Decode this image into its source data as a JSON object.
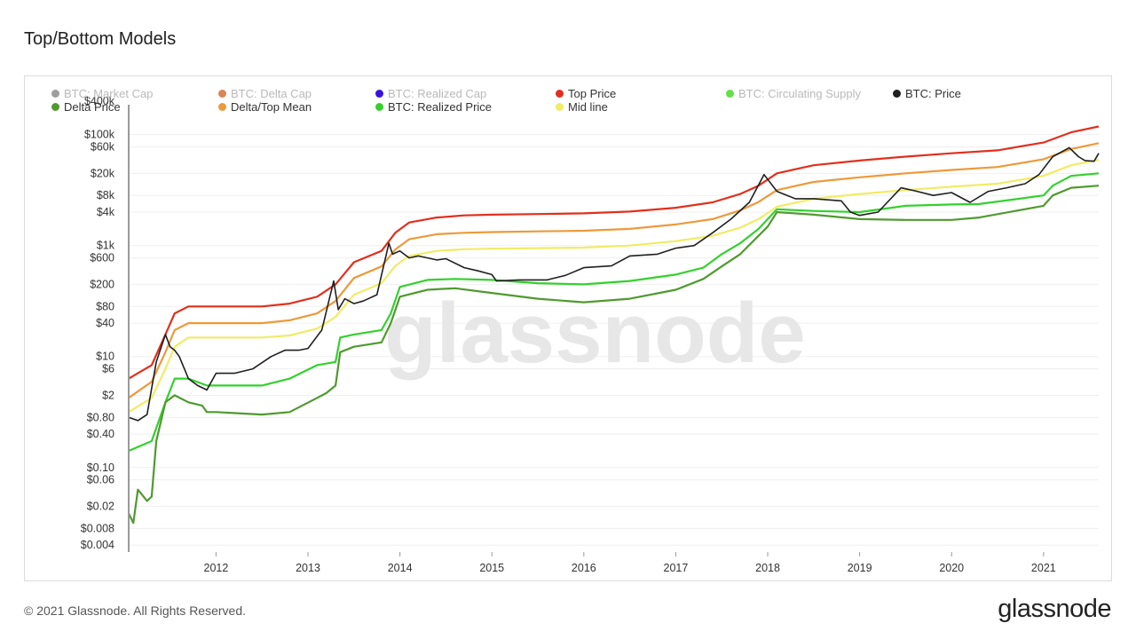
{
  "page": {
    "title": "Top/Bottom Models",
    "footer": "© 2021 Glassnode. All Rights Reserved.",
    "brand": "glassnode",
    "watermark": "glassnode"
  },
  "legend": [
    {
      "label": "BTC: Market Cap",
      "color": "#9e9e9e",
      "active": false
    },
    {
      "label": "BTC: Delta Cap",
      "color": "#d9845a",
      "active": false
    },
    {
      "label": "BTC: Realized Cap",
      "color": "#3a12e0",
      "active": false
    },
    {
      "label": "Top Price",
      "color": "#e0301e",
      "active": true
    },
    {
      "label": "BTC: Circulating Supply",
      "color": "#62e04a",
      "active": false
    },
    {
      "label": "BTC: Price",
      "color": "#1f1f1f",
      "active": true
    },
    {
      "label": "Delta Price",
      "color": "#4f9a2f",
      "active": true
    },
    {
      "label": "Delta/Top Mean",
      "color": "#ec9a3a",
      "active": true
    },
    {
      "label": "BTC: Realized Price",
      "color": "#33d12d",
      "active": true
    },
    {
      "label": "Mid line",
      "color": "#f0ec66",
      "active": true
    }
  ],
  "chart_data": {
    "type": "line",
    "title": "Top/Bottom Models",
    "y_scale": "log",
    "x_ticks": [
      "2012",
      "2013",
      "2014",
      "2015",
      "2016",
      "2017",
      "2018",
      "2019",
      "2020",
      "2021"
    ],
    "y_ticks": [
      {
        "v": 100000,
        "label": "$100k"
      },
      {
        "v": 60000,
        "label": "$60k"
      },
      {
        "v": 20000,
        "label": "$20k"
      },
      {
        "v": 8000,
        "label": "$8k"
      },
      {
        "v": 4000,
        "label": "$4k"
      },
      {
        "v": 1000,
        "label": "$1k"
      },
      {
        "v": 600,
        "label": "$600"
      },
      {
        "v": 200,
        "label": "$200"
      },
      {
        "v": 80,
        "label": "$80"
      },
      {
        "v": 40,
        "label": "$40"
      },
      {
        "v": 10,
        "label": "$10"
      },
      {
        "v": 6,
        "label": "$6"
      },
      {
        "v": 2,
        "label": "$2"
      },
      {
        "v": 0.8,
        "label": "$0.80"
      },
      {
        "v": 0.4,
        "label": "$0.40"
      },
      {
        "v": 0.1,
        "label": "$0.10"
      },
      {
        "v": 0.06,
        "label": "$0.06"
      },
      {
        "v": 0.02,
        "label": "$0.02"
      },
      {
        "v": 0.008,
        "label": "$0.008"
      },
      {
        "v": 0.004,
        "label": "$0.004"
      }
    ],
    "y_top_label": "$400k",
    "x_range": [
      2011.05,
      2021.6
    ],
    "series": [
      {
        "name": "Top Price",
        "color": "#e0301e",
        "x": [
          2011.05,
          2011.3,
          2011.45,
          2011.55,
          2011.7,
          2012.0,
          2012.5,
          2012.8,
          2013.1,
          2013.3,
          2013.5,
          2013.8,
          2013.95,
          2014.1,
          2014.4,
          2014.7,
          2015.0,
          2015.5,
          2016.0,
          2016.5,
          2017.0,
          2017.4,
          2017.7,
          2017.9,
          2018.1,
          2018.5,
          2019.0,
          2019.5,
          2020.0,
          2020.5,
          2021.0,
          2021.3,
          2021.6
        ],
        "y": [
          4,
          7,
          25,
          60,
          80,
          80,
          80,
          90,
          120,
          200,
          500,
          800,
          1700,
          2600,
          3200,
          3500,
          3600,
          3700,
          3800,
          4100,
          4800,
          6000,
          8500,
          12000,
          20000,
          28000,
          34000,
          40000,
          46000,
          52000,
          72000,
          110000,
          140000
        ]
      },
      {
        "name": "Delta/Top Mean",
        "color": "#ec9a3a",
        "x": [
          2011.05,
          2011.3,
          2011.45,
          2011.55,
          2011.7,
          2012.0,
          2012.5,
          2012.8,
          2013.1,
          2013.3,
          2013.5,
          2013.8,
          2013.95,
          2014.1,
          2014.4,
          2014.7,
          2015.0,
          2015.5,
          2016.0,
          2016.5,
          2017.0,
          2017.4,
          2017.7,
          2017.9,
          2018.1,
          2018.5,
          2019.0,
          2019.5,
          2020.0,
          2020.5,
          2021.0,
          2021.3,
          2021.6
        ],
        "y": [
          1.8,
          3.5,
          12,
          30,
          40,
          40,
          40,
          45,
          60,
          100,
          260,
          420,
          850,
          1300,
          1600,
          1700,
          1750,
          1800,
          1850,
          2000,
          2400,
          3000,
          4300,
          6100,
          10000,
          14000,
          17000,
          20000,
          23000,
          26000,
          36000,
          55000,
          70000
        ]
      },
      {
        "name": "Mid line",
        "color": "#f0ec66",
        "x": [
          2011.05,
          2011.3,
          2011.45,
          2011.55,
          2011.7,
          2012.0,
          2012.5,
          2012.8,
          2013.1,
          2013.3,
          2013.5,
          2013.8,
          2013.95,
          2014.1,
          2014.4,
          2014.7,
          2015.0,
          2015.5,
          2016.0,
          2016.5,
          2017.0,
          2017.4,
          2017.7,
          2017.9,
          2018.1,
          2018.5,
          2019.0,
          2019.5,
          2020.0,
          2020.5,
          2021.0,
          2021.3,
          2021.6
        ],
        "y": [
          1,
          1.8,
          6,
          15,
          22,
          22,
          22,
          24,
          32,
          52,
          130,
          210,
          430,
          650,
          800,
          860,
          880,
          900,
          920,
          1000,
          1200,
          1500,
          2100,
          3000,
          5000,
          7000,
          8500,
          10000,
          11500,
          13000,
          18000,
          28000,
          35000
        ]
      },
      {
        "name": "BTC: Realized Price",
        "color": "#33d12d",
        "x": [
          2011.05,
          2011.3,
          2011.45,
          2011.55,
          2011.7,
          2011.9,
          2012.0,
          2012.5,
          2012.8,
          2013.1,
          2013.3,
          2013.35,
          2013.5,
          2013.8,
          2013.9,
          2014.0,
          2014.3,
          2014.6,
          2015.0,
          2015.5,
          2016.0,
          2016.5,
          2017.0,
          2017.3,
          2017.5,
          2017.7,
          2017.9,
          2018.0,
          2018.1,
          2018.5,
          2019.0,
          2019.5,
          2020.0,
          2020.3,
          2021.0,
          2021.1,
          2021.3,
          2021.6
        ],
        "y": [
          0.2,
          0.3,
          1.5,
          4,
          4,
          3,
          3,
          3,
          4,
          7,
          8,
          22,
          25,
          30,
          60,
          180,
          240,
          250,
          240,
          210,
          200,
          230,
          300,
          400,
          700,
          1100,
          2000,
          3000,
          4500,
          4200,
          4000,
          5200,
          5500,
          5600,
          8000,
          12000,
          18000,
          20000
        ]
      },
      {
        "name": "Delta Price",
        "color": "#4f9a2f",
        "x": [
          2011.05,
          2011.1,
          2011.15,
          2011.25,
          2011.3,
          2011.35,
          2011.45,
          2011.55,
          2011.7,
          2011.85,
          2011.9,
          2012.0,
          2012.5,
          2012.8,
          2013.1,
          2013.2,
          2013.3,
          2013.35,
          2013.5,
          2013.8,
          2013.9,
          2014.0,
          2014.3,
          2014.6,
          2015.0,
          2015.5,
          2016.0,
          2016.5,
          2017.0,
          2017.3,
          2017.5,
          2017.7,
          2017.9,
          2018.0,
          2018.1,
          2018.5,
          2019.0,
          2019.5,
          2020.0,
          2020.3,
          2021.0,
          2021.1,
          2021.3,
          2021.6
        ],
        "y": [
          0.015,
          0.01,
          0.04,
          0.025,
          0.03,
          0.3,
          1.5,
          2,
          1.5,
          1.3,
          1,
          1,
          0.9,
          1,
          1.8,
          2.2,
          3,
          12,
          15,
          18,
          40,
          120,
          160,
          170,
          140,
          110,
          95,
          110,
          160,
          250,
          420,
          700,
          1500,
          2200,
          4000,
          3600,
          3000,
          2900,
          2900,
          3200,
          5200,
          8000,
          11000,
          12000
        ]
      },
      {
        "name": "BTC: Price",
        "color": "#1f1f1f",
        "x": [
          2011.05,
          2011.15,
          2011.25,
          2011.35,
          2011.45,
          2011.5,
          2011.55,
          2011.6,
          2011.7,
          2011.8,
          2011.9,
          2012.0,
          2012.2,
          2012.4,
          2012.6,
          2012.75,
          2012.9,
          2013.0,
          2013.15,
          2013.28,
          2013.33,
          2013.4,
          2013.5,
          2013.6,
          2013.75,
          2013.88,
          2013.92,
          2014.0,
          2014.1,
          2014.2,
          2014.4,
          2014.5,
          2014.7,
          2014.85,
          2015.0,
          2015.05,
          2015.3,
          2015.6,
          2015.8,
          2016.0,
          2016.3,
          2016.5,
          2016.8,
          2017.0,
          2017.2,
          2017.4,
          2017.6,
          2017.8,
          2017.96,
          2018.1,
          2018.3,
          2018.5,
          2018.8,
          2018.9,
          2019.0,
          2019.2,
          2019.45,
          2019.6,
          2019.8,
          2020.0,
          2020.2,
          2020.4,
          2020.6,
          2020.8,
          2020.95,
          2021.1,
          2021.28,
          2021.38,
          2021.45,
          2021.55,
          2021.6
        ],
        "y": [
          0.8,
          0.7,
          0.9,
          8,
          25,
          15,
          13,
          10,
          4,
          3,
          2.5,
          5,
          5,
          6,
          10,
          13,
          13,
          14,
          30,
          230,
          70,
          110,
          90,
          100,
          130,
          1100,
          700,
          800,
          600,
          650,
          550,
          580,
          400,
          350,
          300,
          230,
          240,
          240,
          290,
          400,
          430,
          650,
          700,
          900,
          1000,
          1700,
          3000,
          6000,
          19000,
          9500,
          7000,
          7000,
          6400,
          4000,
          3500,
          4000,
          11000,
          9700,
          8000,
          9000,
          6000,
          9500,
          11000,
          13000,
          19000,
          40000,
          58000,
          40000,
          34000,
          33000,
          46000
        ]
      }
    ]
  }
}
